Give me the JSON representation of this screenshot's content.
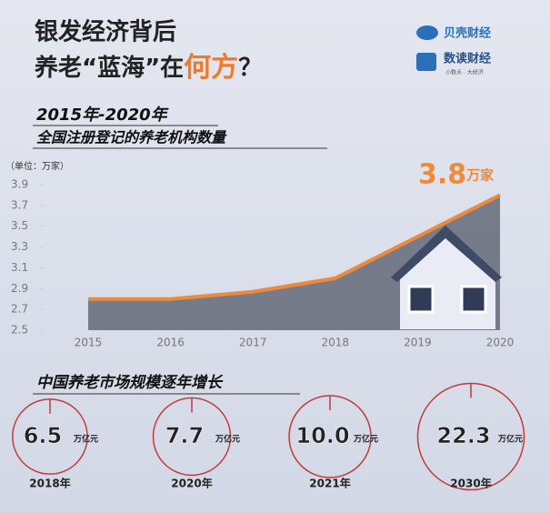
{
  "header": {
    "title_line1": "银发经济背后",
    "title_line2_parts": [
      "养老“蓝海”在",
      "何方",
      "？"
    ],
    "logos": [
      "贝壳财经",
      "数读财经"
    ],
    "logo_tagline": "小数点 · 大经济"
  },
  "chart_data": [
    {
      "type": "line",
      "title": "2015年-2020年",
      "subtitle": "全国注册登记的养老机构数量",
      "y_unit_label": "（单位：万家）",
      "categories": [
        "2015",
        "2016",
        "2017",
        "2018",
        "2019",
        "2020"
      ],
      "values": [
        2.8,
        2.8,
        2.87,
        3.0,
        3.4,
        3.8
      ],
      "value_labels": [
        null,
        null,
        null,
        null,
        null,
        "3.8"
      ],
      "value_label_unit": "万家",
      "color": "#ef8a3a",
      "ylim": [
        2.5,
        3.9
      ],
      "yticks": [
        2.5,
        2.7,
        2.9,
        3.1,
        3.3,
        3.5,
        3.7,
        3.9
      ]
    },
    {
      "type": "gauge",
      "title": "中国养老市场规模逐年增长",
      "categories": [
        "2018年",
        "2020年",
        "2021年",
        "2030年"
      ],
      "values": [
        6.5,
        7.7,
        10.0,
        22.3
      ],
      "value_labels": [
        "6.5",
        "7.7",
        "10.0",
        "22.3"
      ],
      "unit": "万亿元",
      "color": "#c23a3c"
    }
  ]
}
